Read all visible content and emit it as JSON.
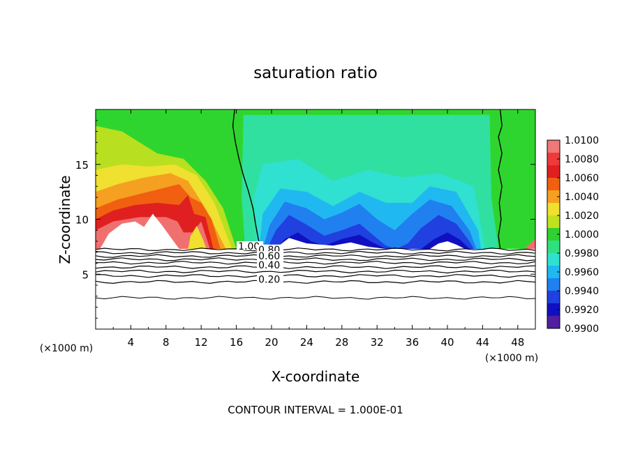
{
  "chart_data": {
    "type": "heatmap",
    "title": "saturation ratio",
    "xlabel": "X-coordinate",
    "ylabel": "Z-coordinate",
    "x_unit_left": "(×1000 m)",
    "x_unit_right": "(×1000 m)",
    "xlim": [
      0,
      50
    ],
    "ylim": [
      0,
      20
    ],
    "x_ticks": [
      4,
      8,
      12,
      16,
      20,
      24,
      28,
      32,
      36,
      40,
      44,
      48
    ],
    "y_ticks": [
      5,
      10,
      15
    ],
    "footer": "CONTOUR INTERVAL = 1.000E-01",
    "colorbar": {
      "ticks": [
        "1.0100",
        "1.0080",
        "1.0060",
        "1.0040",
        "1.0020",
        "1.0000",
        "0.9980",
        "0.9960",
        "0.9940",
        "0.9920",
        "0.9900"
      ],
      "colors": [
        "#f07878",
        "#ee3a3a",
        "#e02020",
        "#f06010",
        "#f5a020",
        "#f0e030",
        "#c0e020",
        "#30d030",
        "#30e080",
        "#30e0d0",
        "#20b8f0",
        "#2080f0",
        "#2040e0",
        "#1010c0",
        "#5020a0"
      ]
    },
    "contour_labels": [
      {
        "text": "1.00",
        "x": 16.2,
        "y": 7.3
      },
      {
        "text": "0.80",
        "x": 18.5,
        "y": 7.0
      },
      {
        "text": "0.60",
        "x": 18.5,
        "y": 6.4
      },
      {
        "text": "0.40",
        "x": 18.5,
        "y": 5.6
      },
      {
        "text": "0.20",
        "x": 18.5,
        "y": 4.3
      }
    ],
    "contour_levels": [
      1.0,
      0.9,
      0.8,
      0.7,
      0.6,
      0.5,
      0.4,
      0.3,
      0.2,
      0.1
    ],
    "contour_heights": [
      7.25,
      6.95,
      6.65,
      6.35,
      6.05,
      5.65,
      5.25,
      4.85,
      4.3,
      2.85
    ],
    "regions": {
      "high_supersat_left": {
        "x_range": [
          0,
          16
        ],
        "peak": 1.006
      },
      "subsat_middle": {
        "x_range": [
          18,
          34
        ],
        "min": 0.991
      },
      "subsat_right": {
        "x_range": [
          36,
          45
        ],
        "min": 0.991
      },
      "near_one_right": {
        "x_range": [
          46,
          50
        ],
        "value": 1.0
      },
      "boundary_1_x": 16.5,
      "boundary_2_x": 45.5
    }
  }
}
